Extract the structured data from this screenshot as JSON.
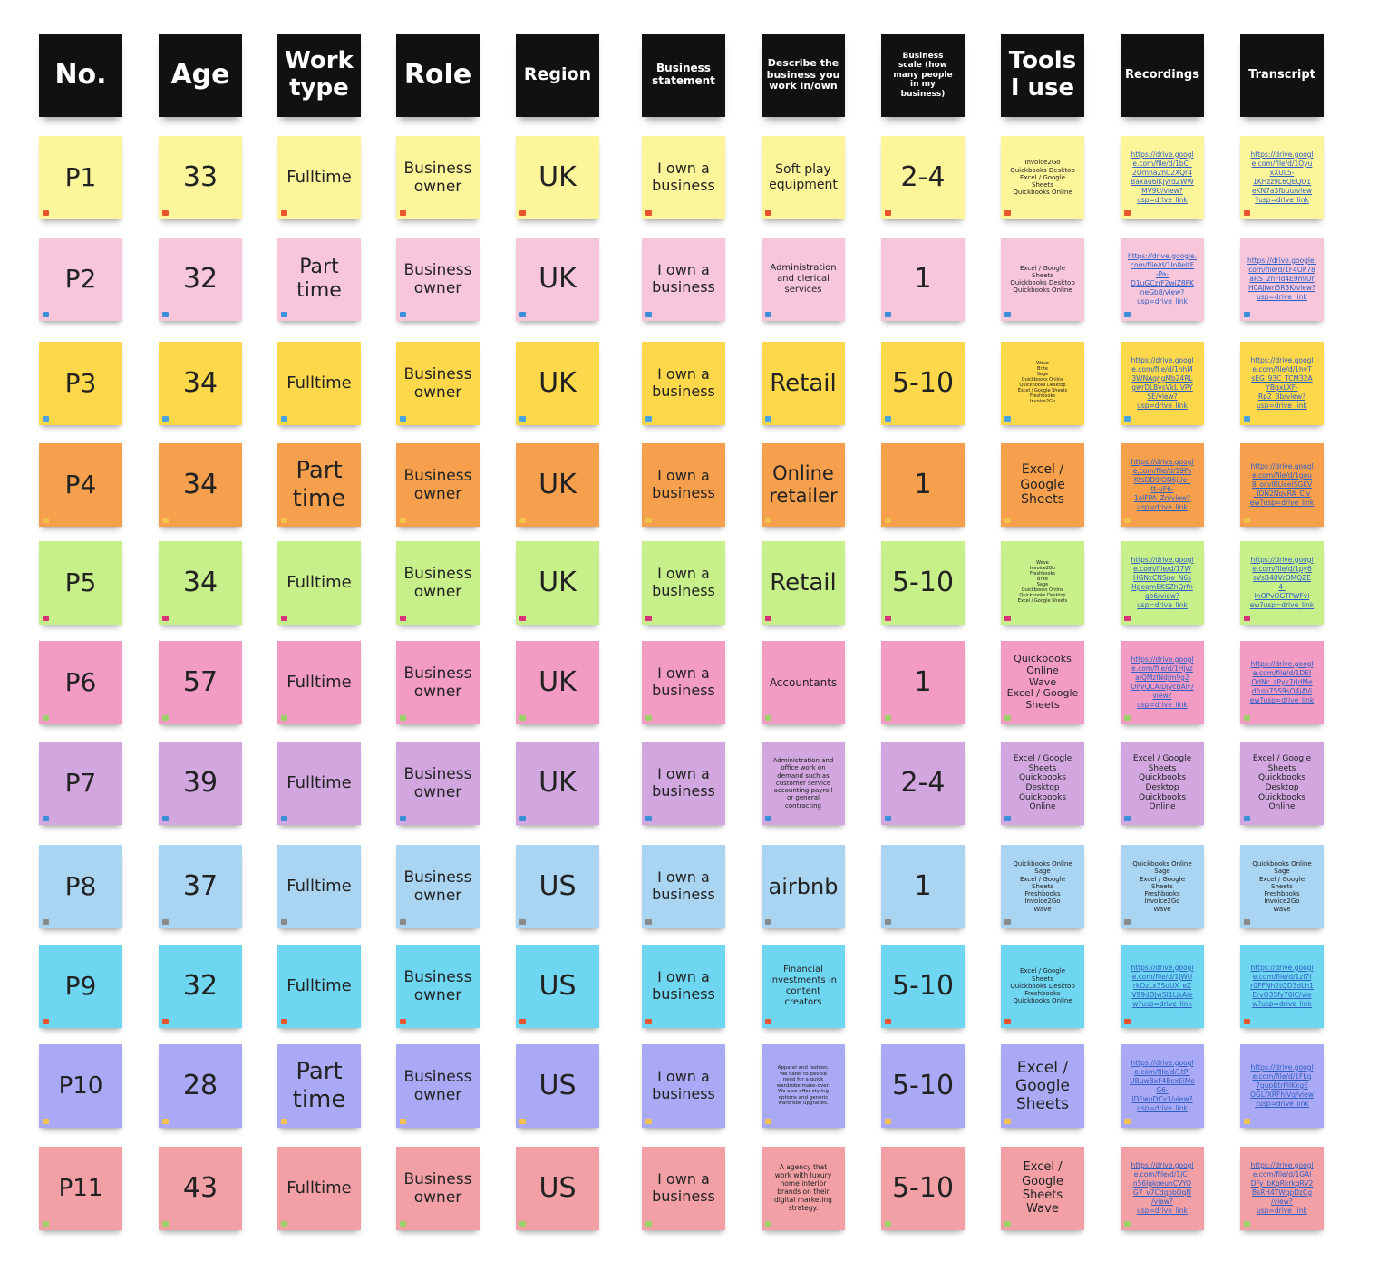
{
  "headers": [
    {
      "text": "No.",
      "size": 30
    },
    {
      "text": "Age",
      "size": 30
    },
    {
      "text": "Work\ntype",
      "size": 26
    },
    {
      "text": "Role",
      "size": 30
    },
    {
      "text": "Region",
      "size": 19
    },
    {
      "text": "Business\nstatement",
      "size": 12
    },
    {
      "text": "Describe the\nbusiness you\nwork in/own",
      "size": 11
    },
    {
      "text": "Business\nscale (how\nmany people\nin my\nbusiness)",
      "size": 9
    },
    {
      "text": "Tools\nI use",
      "size": 26
    },
    {
      "text": "Recordings",
      "size": 13
    },
    {
      "text": "Transcript",
      "size": 13
    }
  ],
  "rows": [
    {
      "color": "#fdf59a",
      "tag": "#e8542f",
      "cells": [
        {
          "text": "P1",
          "size": 28
        },
        {
          "text": "33",
          "size": 30
        },
        {
          "text": "Fulltime",
          "size": 18
        },
        {
          "text": "Business\nowner",
          "size": 17
        },
        {
          "text": "UK",
          "size": 30
        },
        {
          "text": "I own a\nbusiness",
          "size": 16
        },
        {
          "text": "Soft play\nequipment",
          "size": 14
        },
        {
          "text": "2-4",
          "size": 30
        },
        {
          "text": "Invoice2Go\nQuickbooks Desktop\nExcel / Google\nSheets\nQuickbooks Online",
          "size": 7
        },
        {
          "text": "https://drive.googl\ne.com/file/d/1bC_\n2Omha2hC2XQr4\nBaxau6lKJyrdZWW\nMV9U/view?\nusp=drive_link",
          "link": true
        },
        {
          "text": "https://drive.googl\ne.com/file/d/1Oyu\nxXUL5-\n1KHzz9L6QEQO1\neKN7a3fbuu/view\n?usp=drive_link",
          "link": true
        }
      ]
    },
    {
      "color": "#f8c6da",
      "tag": "#3b8fd9",
      "cells": [
        {
          "text": "P2",
          "size": 28
        },
        {
          "text": "32",
          "size": 30
        },
        {
          "text": "Part\ntime",
          "size": 22
        },
        {
          "text": "Business\nowner",
          "size": 17
        },
        {
          "text": "UK",
          "size": 30
        },
        {
          "text": "I own a\nbusiness",
          "size": 16
        },
        {
          "text": "Administration\nand clerical\nservices",
          "size": 10
        },
        {
          "text": "1",
          "size": 30
        },
        {
          "text": "Excel / Google\nSheets\nQuickbooks Desktop\nQuickbooks Online",
          "size": 7
        },
        {
          "text": "https://drive.google.\ncom/file/d/1In0eltF\n-Pa-\nD1uGCzrF2wiZ8FK\nneGb8/view?\nusp=drive_link",
          "link": true
        },
        {
          "text": "https://drive.google.\ncom/file/d/1F4OP78\naRS_2nFld4E9mlUr\nH0Ajlwn5R3K/view?\nusp=drive_link",
          "link": true
        }
      ]
    },
    {
      "color": "#fdd84a",
      "tag": "#4aa3df",
      "cells": [
        {
          "text": "P3",
          "size": 28
        },
        {
          "text": "34",
          "size": 30
        },
        {
          "text": "Fulltime",
          "size": 18
        },
        {
          "text": "Business\nowner",
          "size": 17
        },
        {
          "text": "UK",
          "size": 30
        },
        {
          "text": "I own a\nbusiness",
          "size": 16
        },
        {
          "text": "Retail",
          "size": 26
        },
        {
          "text": "5-10",
          "size": 30
        },
        {
          "text": "Wave\nBrite\nSage\nQuickbooks Online\nQuickbooks Desktop\nExcel / Google Sheets\nFreshbooks\nInvoice2Go",
          "size": 5
        },
        {
          "text": "https://drive.googl\ne.com/file/d/1hhM\n3WNAqngMb24RL\ngwrDLBvsVkL VPY\nSE/view?\nusp=drive_link",
          "link": true
        },
        {
          "text": "https://drive.googl\ne.com/file/d/1hvT\nsEG_93C_TCM32A\nYBgxLXF-\nRp2_Bb/view?\nusp=drive_link",
          "link": true
        }
      ]
    },
    {
      "color": "#f6a04d",
      "tag": "#f2c14e",
      "cells": [
        {
          "text": "P4",
          "size": 28
        },
        {
          "text": "34",
          "size": 30
        },
        {
          "text": "Part\ntime",
          "size": 26
        },
        {
          "text": "Business\nowner",
          "size": 17
        },
        {
          "text": "UK",
          "size": 30
        },
        {
          "text": "I own a\nbusiness",
          "size": 16
        },
        {
          "text": "Online\nretailer",
          "size": 21
        },
        {
          "text": "1",
          "size": 30
        },
        {
          "text": "Excel /\nGoogle\nSheets",
          "size": 14
        },
        {
          "text": "https://drive.googl\ne.com/file/d/19Ps\nKtsDD9lON6jUe_\ntt-uF6-\n1olFPA_Zn/view?\nusp=drive_link",
          "link": true
        },
        {
          "text": "https://drive.googl\ne.com/file/d/1gou\n8_ocvlRUaelSGKV\n_IDN2NqvRA_CJv\new?usp=drive_link",
          "link": true
        }
      ]
    },
    {
      "color": "#c8f08a",
      "tag": "#d6337a",
      "cells": [
        {
          "text": "P5",
          "size": 28
        },
        {
          "text": "34",
          "size": 30
        },
        {
          "text": "Fulltime",
          "size": 18
        },
        {
          "text": "Business\nowner",
          "size": 17
        },
        {
          "text": "UK",
          "size": 30
        },
        {
          "text": "I own a\nbusiness",
          "size": 16
        },
        {
          "text": "Retail",
          "size": 26
        },
        {
          "text": "5-10",
          "size": 30
        },
        {
          "text": "Wave\nInvoice2Go\nFreshbooks\nBrite\nSage\nQuickbooks Online\nQuickbooks Desktop\nExcel / Google Sheets",
          "size": 5
        },
        {
          "text": "https://drive.googl\ne.com/file/d/17W\nHGNzCNSpe_N6s\nHpeqmEKSZhQrfn\ngo6/view?\nusp=drive_link",
          "link": true
        },
        {
          "text": "https://drive.googl\ne.com/file/d/1py6\nsVsB40VrOMQZE\n4-\nInOPvOGTPWFvi\new?usp=drive_link",
          "link": true
        }
      ]
    },
    {
      "color": "#f29bc3",
      "tag": "#9bd06a",
      "cells": [
        {
          "text": "P6",
          "size": 28
        },
        {
          "text": "57",
          "size": 30
        },
        {
          "text": "Fulltime",
          "size": 18
        },
        {
          "text": "Business\nowner",
          "size": 17
        },
        {
          "text": "UK",
          "size": 30
        },
        {
          "text": "I own a\nbusiness",
          "size": 16
        },
        {
          "text": "Accountants",
          "size": 12
        },
        {
          "text": "1",
          "size": 30
        },
        {
          "text": "Quickbooks\nOnline\nWave\nExcel / Google\nSheets",
          "size": 11
        },
        {
          "text": "https://drive.googl\ne.com/file/d/1Hjvz\naiQMzINdJm9g2\nOnyQCAIDjycBAlF/\nview?\nusp=drive_link",
          "link": true
        },
        {
          "text": "https://drive.googl\ne.com/file/d/1DEI\nOdNc_zPyk7rJdMe\ndfulo75S9sO4jAVi\new?usp=drive_link",
          "link": true
        }
      ]
    },
    {
      "color": "#d2a6df",
      "tag": "#3b8fd9",
      "cells": [
        {
          "text": "P7",
          "size": 28
        },
        {
          "text": "39",
          "size": 30
        },
        {
          "text": "Fulltime",
          "size": 18
        },
        {
          "text": "Business\nowner",
          "size": 17
        },
        {
          "text": "UK",
          "size": 30
        },
        {
          "text": "I own a\nbusiness",
          "size": 16
        },
        {
          "text": "Administration and\noffice work on\ndemand such as\ncustomer service\naccounting payroll\nor general\ncontracting",
          "size": 7
        },
        {
          "text": "2-4",
          "size": 30
        },
        {
          "text": "Excel / Google\nSheets\nQuickbooks\nDesktop\nQuickbooks\nOnline",
          "size": 9
        },
        {
          "text": "Excel / Google\nSheets\nQuickbooks\nDesktop\nQuickbooks\nOnline",
          "size": 9
        },
        {
          "text": "Excel / Google\nSheets\nQuickbooks\nDesktop\nQuickbooks\nOnline",
          "size": 9
        }
      ]
    },
    {
      "color": "#a9d4f2",
      "tag": "#8a8a8a",
      "cells": [
        {
          "text": "P8",
          "size": 28
        },
        {
          "text": "37",
          "size": 30
        },
        {
          "text": "Fulltime",
          "size": 18
        },
        {
          "text": "Business\nowner",
          "size": 17
        },
        {
          "text": "US",
          "size": 30
        },
        {
          "text": "I own a\nbusiness",
          "size": 16
        },
        {
          "text": "airbnb",
          "size": 24
        },
        {
          "text": "1",
          "size": 30
        },
        {
          "text": "Quickbooks Online\nSage\nExcel / Google\nSheets\nFreshbooks\nInvoice2Go\nWave",
          "size": 7
        },
        {
          "text": "Quickbooks Online\nSage\nExcel / Google\nSheets\nFreshbooks\nInvoice2Go\nWave",
          "size": 7
        },
        {
          "text": "Quickbooks Online\nSage\nExcel / Google\nSheets\nFreshbooks\nInvoice2Go\nWave",
          "size": 7
        }
      ]
    },
    {
      "color": "#6fd6f2",
      "tag": "#e8542f",
      "cells": [
        {
          "text": "P9",
          "size": 28
        },
        {
          "text": "32",
          "size": 30
        },
        {
          "text": "Fulltime",
          "size": 18
        },
        {
          "text": "Business\nowner",
          "size": 17
        },
        {
          "text": "US",
          "size": 30
        },
        {
          "text": "I own a\nbusiness",
          "size": 16
        },
        {
          "text": "Financial\ninvestments in\ncontent\ncreators",
          "size": 10
        },
        {
          "text": "5-10",
          "size": 30
        },
        {
          "text": "Excel / Google\nSheets\nQuickbooks Desktop\nFreshbooks\nQuickbooks Online",
          "size": 7
        },
        {
          "text": "https://drive.googl\ne.com/file/d/1jWU\nrkOzLx3SuUX_eZ\nV99dDJwSI1LjsAie\nw?usp=drive_link",
          "link": true
        },
        {
          "text": "https://drive.googl\ne.com/file/d/1zl7I\nr0PFNh2tQD3dLh1\nErvO3Sfy70lC/vie\nw?usp=drive_link",
          "link": true
        }
      ]
    },
    {
      "color": "#a9a9f5",
      "tag": "#f2c14e",
      "cells": [
        {
          "text": "P10",
          "size": 26
        },
        {
          "text": "28",
          "size": 30
        },
        {
          "text": "Part\ntime",
          "size": 26
        },
        {
          "text": "Business\nowner",
          "size": 17
        },
        {
          "text": "US",
          "size": 30
        },
        {
          "text": "I own a\nbusiness",
          "size": 16
        },
        {
          "text": "Apparel and fashion.\nWe cater to people\nneed for a quick\nwardrobe make-over.\nWe also offer styling\noptions and generic\nwardrobe upgrades.",
          "size": 5.5
        },
        {
          "text": "5-10",
          "size": 30
        },
        {
          "text": "Excel /\nGoogle\nSheets",
          "size": 17
        },
        {
          "text": "https://drive.googl\ne.com/file/d/1tP-\nUBuwBxF4BcxEiMe\nG6-\nIDFwuDCv3/view?\nusp=drive_link",
          "link": true
        },
        {
          "text": "https://drive.googl\ne.com/file/d/1Fkq\n7gupBtrPllKkgE\nOGLfXRFhjVq/view\n?usp=drive_link",
          "link": true
        }
      ]
    },
    {
      "color": "#f2a0a6",
      "tag": "#9bd06a",
      "cells": [
        {
          "text": "P11",
          "size": 26
        },
        {
          "text": "43",
          "size": 30
        },
        {
          "text": "Fulltime",
          "size": 18
        },
        {
          "text": "Business\nowner",
          "size": 17
        },
        {
          "text": "US",
          "size": 30
        },
        {
          "text": "I own a\nbusiness",
          "size": 16
        },
        {
          "text": "A agency that\nwork with luxury\nhome interior\nbrands on their\ndigital marketing\nstrategy.",
          "size": 7.5
        },
        {
          "text": "5-10",
          "size": 30
        },
        {
          "text": "Excel /\nGoogle\nSheets\nWave",
          "size": 13
        },
        {
          "text": "https://drive.googl\ne.com/file/d/1jC_\nn56lgkoeunCVYO\nG7_v7CdqbbOqN\n/view?\nusp=drive_link",
          "link": true
        },
        {
          "text": "https://drive.googl\ne.com/file/d/1GAl\nDFy_bKgRkrkgRV2\nBsRH4TWqpDzCg\n/view?\nusp=drive_link",
          "link": true
        }
      ]
    }
  ]
}
